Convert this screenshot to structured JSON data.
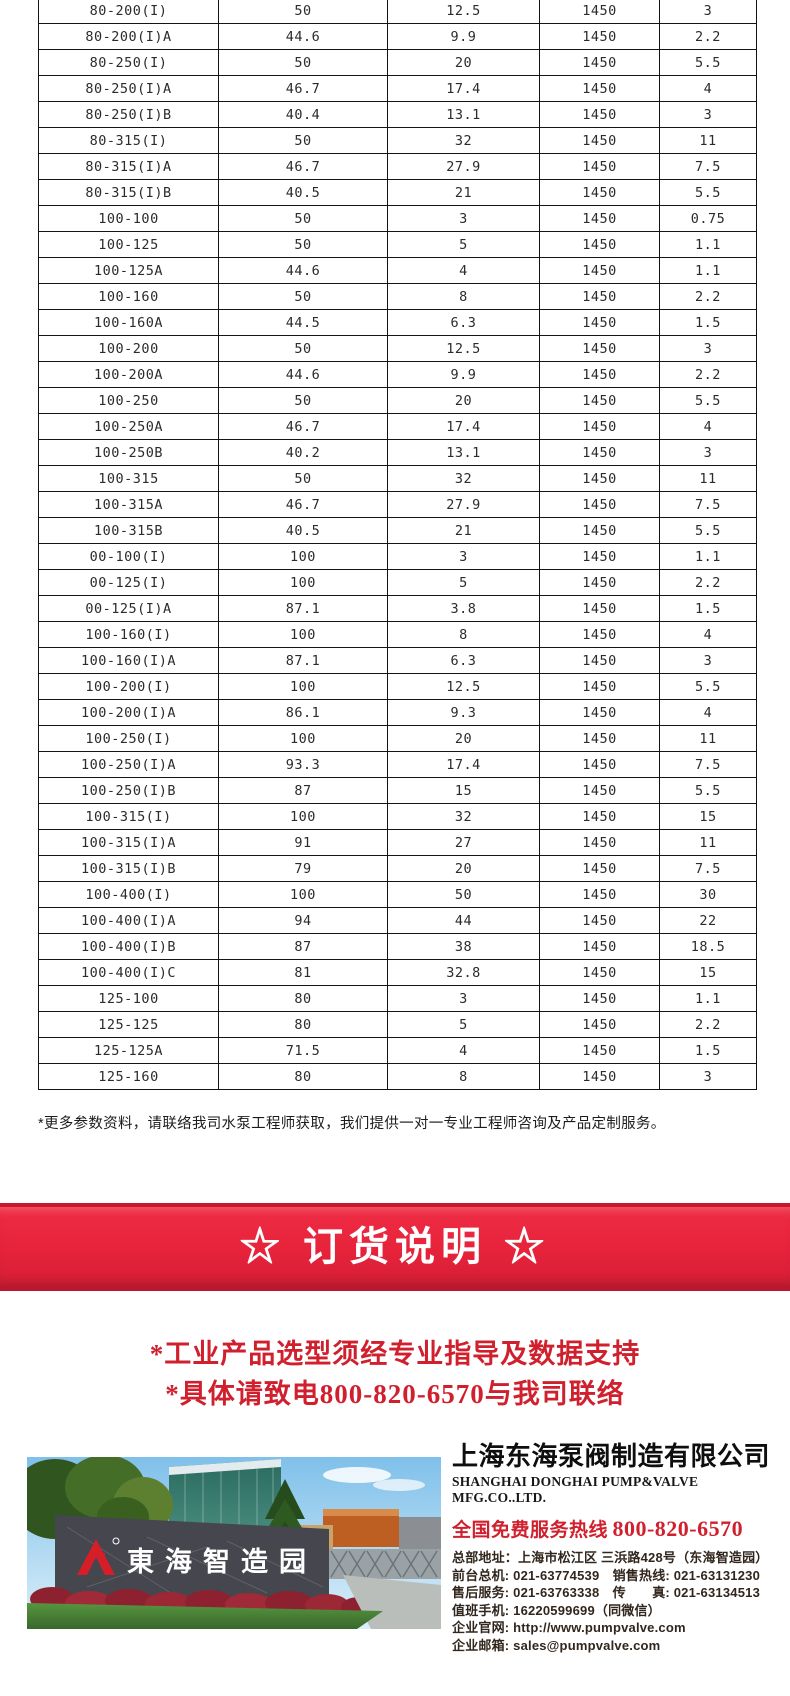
{
  "table": {
    "rows": [
      [
        "80-200(I)",
        "50",
        "12.5",
        "1450",
        "3"
      ],
      [
        "80-200(I)A",
        "44.6",
        "9.9",
        "1450",
        "2.2"
      ],
      [
        "80-250(I)",
        "50",
        "20",
        "1450",
        "5.5"
      ],
      [
        "80-250(I)A",
        "46.7",
        "17.4",
        "1450",
        "4"
      ],
      [
        "80-250(I)B",
        "40.4",
        "13.1",
        "1450",
        "3"
      ],
      [
        "80-315(I)",
        "50",
        "32",
        "1450",
        "11"
      ],
      [
        "80-315(I)A",
        "46.7",
        "27.9",
        "1450",
        "7.5"
      ],
      [
        "80-315(I)B",
        "40.5",
        "21",
        "1450",
        "5.5"
      ],
      [
        "100-100",
        "50",
        "3",
        "1450",
        "0.75"
      ],
      [
        "100-125",
        "50",
        "5",
        "1450",
        "1.1"
      ],
      [
        "100-125A",
        "44.6",
        "4",
        "1450",
        "1.1"
      ],
      [
        "100-160",
        "50",
        "8",
        "1450",
        "2.2"
      ],
      [
        "100-160A",
        "44.5",
        "6.3",
        "1450",
        "1.5"
      ],
      [
        "100-200",
        "50",
        "12.5",
        "1450",
        "3"
      ],
      [
        "100-200A",
        "44.6",
        "9.9",
        "1450",
        "2.2"
      ],
      [
        "100-250",
        "50",
        "20",
        "1450",
        "5.5"
      ],
      [
        "100-250A",
        "46.7",
        "17.4",
        "1450",
        "4"
      ],
      [
        "100-250B",
        "40.2",
        "13.1",
        "1450",
        "3"
      ],
      [
        "100-315",
        "50",
        "32",
        "1450",
        "11"
      ],
      [
        "100-315A",
        "46.7",
        "27.9",
        "1450",
        "7.5"
      ],
      [
        "100-315B",
        "40.5",
        "21",
        "1450",
        "5.5"
      ],
      [
        "00-100(I)",
        "100",
        "3",
        "1450",
        "1.1"
      ],
      [
        "00-125(I)",
        "100",
        "5",
        "1450",
        "2.2"
      ],
      [
        "00-125(I)A",
        "87.1",
        "3.8",
        "1450",
        "1.5"
      ],
      [
        "100-160(I)",
        "100",
        "8",
        "1450",
        "4"
      ],
      [
        "100-160(I)A",
        "87.1",
        "6.3",
        "1450",
        "3"
      ],
      [
        "100-200(I)",
        "100",
        "12.5",
        "1450",
        "5.5"
      ],
      [
        "100-200(I)A",
        "86.1",
        "9.3",
        "1450",
        "4"
      ],
      [
        "100-250(I)",
        "100",
        "20",
        "1450",
        "11"
      ],
      [
        "100-250(I)A",
        "93.3",
        "17.4",
        "1450",
        "7.5"
      ],
      [
        "100-250(I)B",
        "87",
        "15",
        "1450",
        "5.5"
      ],
      [
        "100-315(I)",
        "100",
        "32",
        "1450",
        "15"
      ],
      [
        "100-315(I)A",
        "91",
        "27",
        "1450",
        "11"
      ],
      [
        "100-315(I)B",
        "79",
        "20",
        "1450",
        "7.5"
      ],
      [
        "100-400(I)",
        "100",
        "50",
        "1450",
        "30"
      ],
      [
        "100-400(I)A",
        "94",
        "44",
        "1450",
        "22"
      ],
      [
        "100-400(I)B",
        "87",
        "38",
        "1450",
        "18.5"
      ],
      [
        "100-400(I)C",
        "81",
        "32.8",
        "1450",
        "15"
      ],
      [
        "125-100",
        "80",
        "3",
        "1450",
        "1.1"
      ],
      [
        "125-125",
        "80",
        "5",
        "1450",
        "2.2"
      ],
      [
        "125-125A",
        "71.5",
        "4",
        "1450",
        "1.5"
      ],
      [
        "125-160",
        "80",
        "8",
        "1450",
        "3"
      ]
    ]
  },
  "note": "*更多参数资料，请联络我司水泵工程师获取，我们提供一对一专业工程师咨询及产品定制服务。",
  "order_section": {
    "title": "☆ 订货说明 ☆",
    "slogans": [
      "*工业产品选型须经专业指导及数据支持",
      "*具体请致电800-820-6570与我司联络"
    ]
  },
  "company": {
    "name_cn": "上海东海泵阀制造有限公司",
    "name_en": "SHANGHAI DONGHAI PUMP&VALVE MFG.CO..LTD.",
    "hotline_label": "全国免费服务热线",
    "hotline_number": "800-820-6570",
    "contact_lines": [
      "总部地址：上海市松江区 三浜路428号（东海智造园）",
      "前台总机: 021-63774539　销售热线: 021-63131230",
      "售后服务: 021-63763338　传　　真: 021-63134513",
      "值班手机: 16220599699（同微信）",
      "企业官网: http://www.pumpvalve.com",
      "企业邮箱: sales@pumpvalve.com"
    ],
    "photo_sign_text": "東海智造园"
  },
  "colors": {
    "banner_red": "#e6233b",
    "accent_red": "#d0202e"
  }
}
